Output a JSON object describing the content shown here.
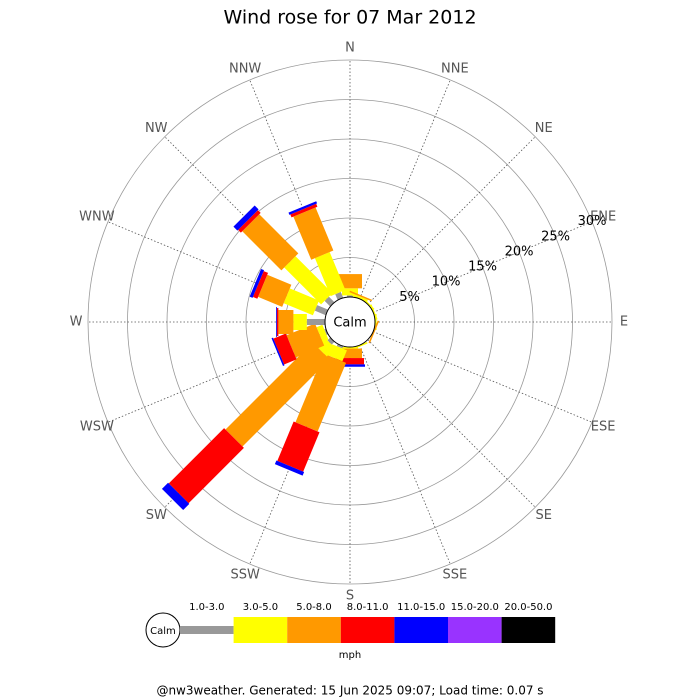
{
  "chart_data": {
    "type": "windrose",
    "title": "Wind rose for 07 Mar 2012",
    "categories": [
      "N",
      "NNE",
      "NE",
      "ENE",
      "E",
      "ESE",
      "SE",
      "SSE",
      "S",
      "SSW",
      "SW",
      "WSW",
      "W",
      "WNW",
      "NW",
      "NNW"
    ],
    "series": [
      {
        "name": "1.0-3.0",
        "color": "#999999",
        "values": [
          0.2,
          0,
          0,
          0,
          0,
          0,
          0,
          0,
          0,
          0.3,
          0.5,
          0.2,
          2.3,
          1.5,
          1.0,
          0.8
        ]
      },
      {
        "name": "3.0-5.0",
        "color": "#ffff00",
        "values": [
          0.9,
          0.3,
          0.2,
          0.2,
          0.2,
          0,
          0,
          0.2,
          0.2,
          1.5,
          1.5,
          0.8,
          1.7,
          4.0,
          6.6,
          5.2
        ]
      },
      {
        "name": "5.0-8.0",
        "color": "#ff9900",
        "values": [
          1.8,
          0.2,
          0,
          0,
          0,
          0.2,
          0,
          0,
          1.2,
          9.4,
          15.6,
          3.9,
          1.9,
          3.3,
          7.0,
          5.9
        ]
      },
      {
        "name": "8.0-11.0",
        "color": "#ff0000",
        "values": [
          0,
          0,
          0,
          0,
          0,
          0,
          0,
          0,
          0.8,
          5.4,
          9.9,
          1.7,
          0.2,
          0.6,
          0.5,
          0.4
        ]
      },
      {
        "name": "11.0-15.0",
        "color": "#0000ff",
        "values": [
          0,
          0,
          0,
          0,
          0,
          0,
          0,
          0,
          0.3,
          0.5,
          1.1,
          0.2,
          0.1,
          0.4,
          0.7,
          0.3
        ]
      },
      {
        "name": "15.0-20.0",
        "color": "#9933ff",
        "values": [
          0,
          0,
          0,
          0,
          0,
          0,
          0,
          0,
          0,
          0,
          0,
          0,
          0,
          0,
          0,
          0
        ]
      },
      {
        "name": "20.0-50.0",
        "color": "#000000",
        "values": [
          0,
          0,
          0,
          0,
          0,
          0,
          0,
          0,
          0,
          0,
          0,
          0,
          0,
          0,
          0,
          0
        ]
      }
    ],
    "rlim": [
      0,
      30
    ],
    "rticks": [
      {
        "value": 5,
        "label": "5%"
      },
      {
        "value": 10,
        "label": "10%"
      },
      {
        "value": 15,
        "label": "15%"
      },
      {
        "value": 20,
        "label": "20%"
      },
      {
        "value": 25,
        "label": "25%"
      },
      {
        "value": 30,
        "label": "30%"
      }
    ],
    "calm_label": "Calm",
    "unit": "mph",
    "footer": "@nw3weather. Generated: 15 Jun 2025 09:07; Load time: 0.07 s"
  }
}
